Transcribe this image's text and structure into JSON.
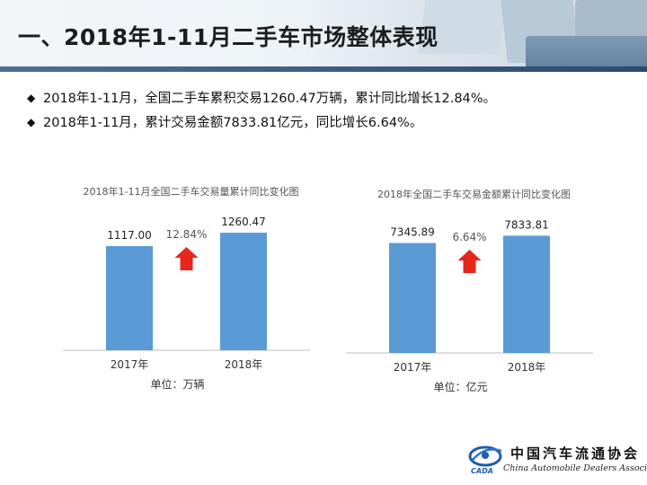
{
  "header": {
    "title": "一、2018年1-11月二手车市场整体表现"
  },
  "bullets": [
    "2018年1-11月，全国二手车累积交易1260.47万辆，累计同比增长12.84%。",
    "2018年1-11月，累计交易金额7833.81亿元，同比增长6.64%。"
  ],
  "bullet_glyph": "◆",
  "colors": {
    "bar": "#5b9bd5",
    "arrow": "#e8261c",
    "axis": "#bfbfbf"
  },
  "chart_data": [
    {
      "type": "bar",
      "title": "2018年1-11月全国二手车交易量累计同比变化图",
      "categories": [
        "2017年",
        "2018年"
      ],
      "values": [
        1117.0,
        1260.47
      ],
      "value_labels": [
        "1117.00",
        "1260.47"
      ],
      "growth_label": "12.84%",
      "unit": "单位：万辆",
      "ylim": [
        0,
        1300
      ]
    },
    {
      "type": "bar",
      "title": "2018年全国二手车交易金额累计同比变化图",
      "categories": [
        "2017年",
        "2018年"
      ],
      "values": [
        7345.89,
        7833.81
      ],
      "value_labels": [
        "7345.89",
        "7833.81"
      ],
      "growth_label": "6.64%",
      "unit": "单位：亿元",
      "ylim": [
        0,
        8100
      ]
    }
  ],
  "logo": {
    "cn": "中国汽车流通协会",
    "en": "China Automobile Dealers Association",
    "abbr": "CADA"
  }
}
